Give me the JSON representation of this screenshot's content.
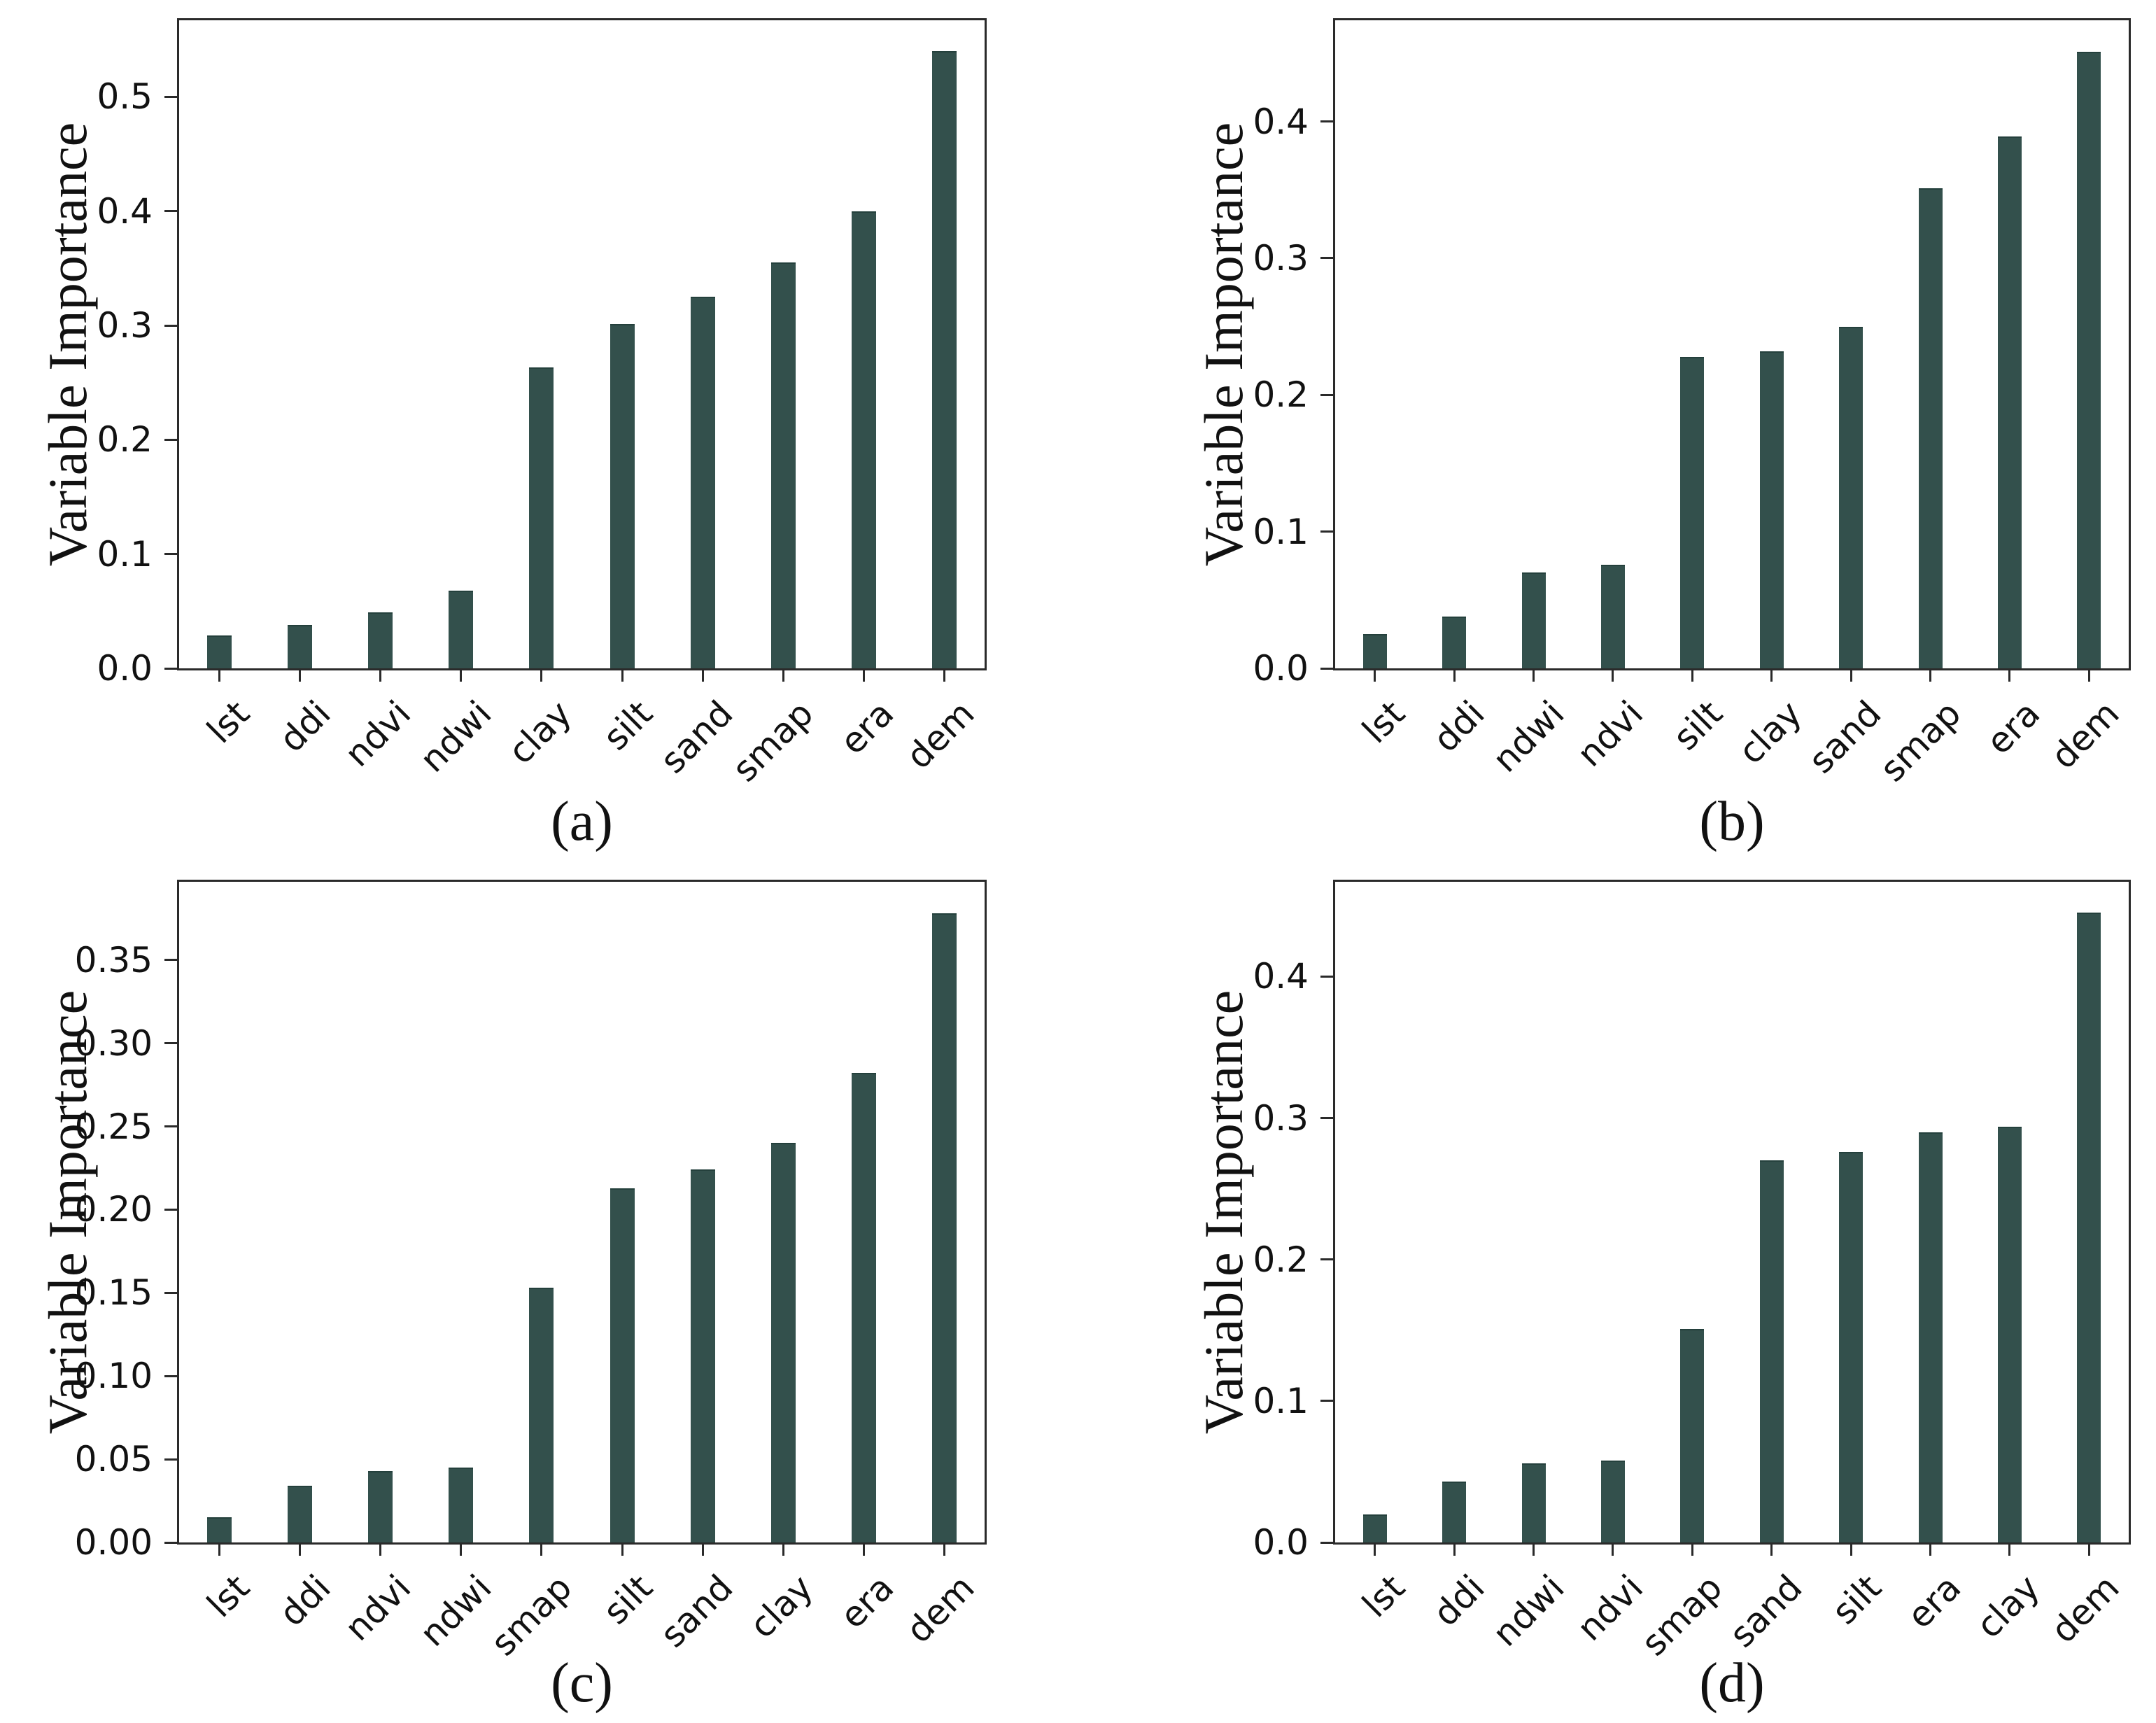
{
  "figure": {
    "bar_color": "#33504C",
    "bar_edge_color": "#24403C",
    "spine_color": "#2a2a2a",
    "text_color": "#111111",
    "background": "#ffffff"
  },
  "chart_data": [
    {
      "type": "bar",
      "panel": "a",
      "caption": "(a)",
      "ylabel": "Variable Importance",
      "xlabel": "",
      "categories": [
        "lst",
        "ddi",
        "ndvi",
        "ndwi",
        "clay",
        "silt",
        "sand",
        "smap",
        "era",
        "dem"
      ],
      "values": [
        0.029,
        0.038,
        0.049,
        0.068,
        0.263,
        0.301,
        0.325,
        0.355,
        0.4,
        0.54
      ],
      "ylim": [
        0,
        0.567
      ],
      "yticks": [
        0.0,
        0.1,
        0.2,
        0.3,
        0.4,
        0.5
      ],
      "ytick_decimals": 1,
      "grid": false,
      "legend": "none"
    },
    {
      "type": "bar",
      "panel": "b",
      "caption": "(b)",
      "ylabel": "Variable Importance",
      "xlabel": "",
      "categories": [
        "lst",
        "ddi",
        "ndwi",
        "ndvi",
        "silt",
        "clay",
        "sand",
        "smap",
        "era",
        "dem"
      ],
      "values": [
        0.025,
        0.038,
        0.07,
        0.076,
        0.228,
        0.232,
        0.25,
        0.351,
        0.389,
        0.451
      ],
      "ylim": [
        0,
        0.474
      ],
      "yticks": [
        0.0,
        0.1,
        0.2,
        0.3,
        0.4
      ],
      "ytick_decimals": 1,
      "grid": false,
      "legend": "none"
    },
    {
      "type": "bar",
      "panel": "c",
      "caption": "(c)",
      "ylabel": "Variable Importance",
      "xlabel": "",
      "categories": [
        "lst",
        "ddi",
        "ndvi",
        "ndwi",
        "smap",
        "silt",
        "sand",
        "clay",
        "era",
        "dem"
      ],
      "values": [
        0.015,
        0.034,
        0.043,
        0.045,
        0.153,
        0.213,
        0.224,
        0.24,
        0.282,
        0.378
      ],
      "ylim": [
        0,
        0.397
      ],
      "yticks": [
        0.0,
        0.05,
        0.1,
        0.15,
        0.2,
        0.25,
        0.3,
        0.35
      ],
      "ytick_decimals": 2,
      "grid": false,
      "legend": "none"
    },
    {
      "type": "bar",
      "panel": "d",
      "caption": "(d)",
      "ylabel": "Variable Importance",
      "xlabel": "",
      "categories": [
        "lst",
        "ddi",
        "ndwi",
        "ndvi",
        "smap",
        "sand",
        "silt",
        "era",
        "clay",
        "dem"
      ],
      "values": [
        0.02,
        0.043,
        0.056,
        0.058,
        0.151,
        0.27,
        0.276,
        0.29,
        0.294,
        0.445
      ],
      "ylim": [
        0,
        0.467
      ],
      "yticks": [
        0.0,
        0.1,
        0.2,
        0.3,
        0.4
      ],
      "ytick_decimals": 1,
      "grid": false,
      "legend": "none"
    }
  ]
}
